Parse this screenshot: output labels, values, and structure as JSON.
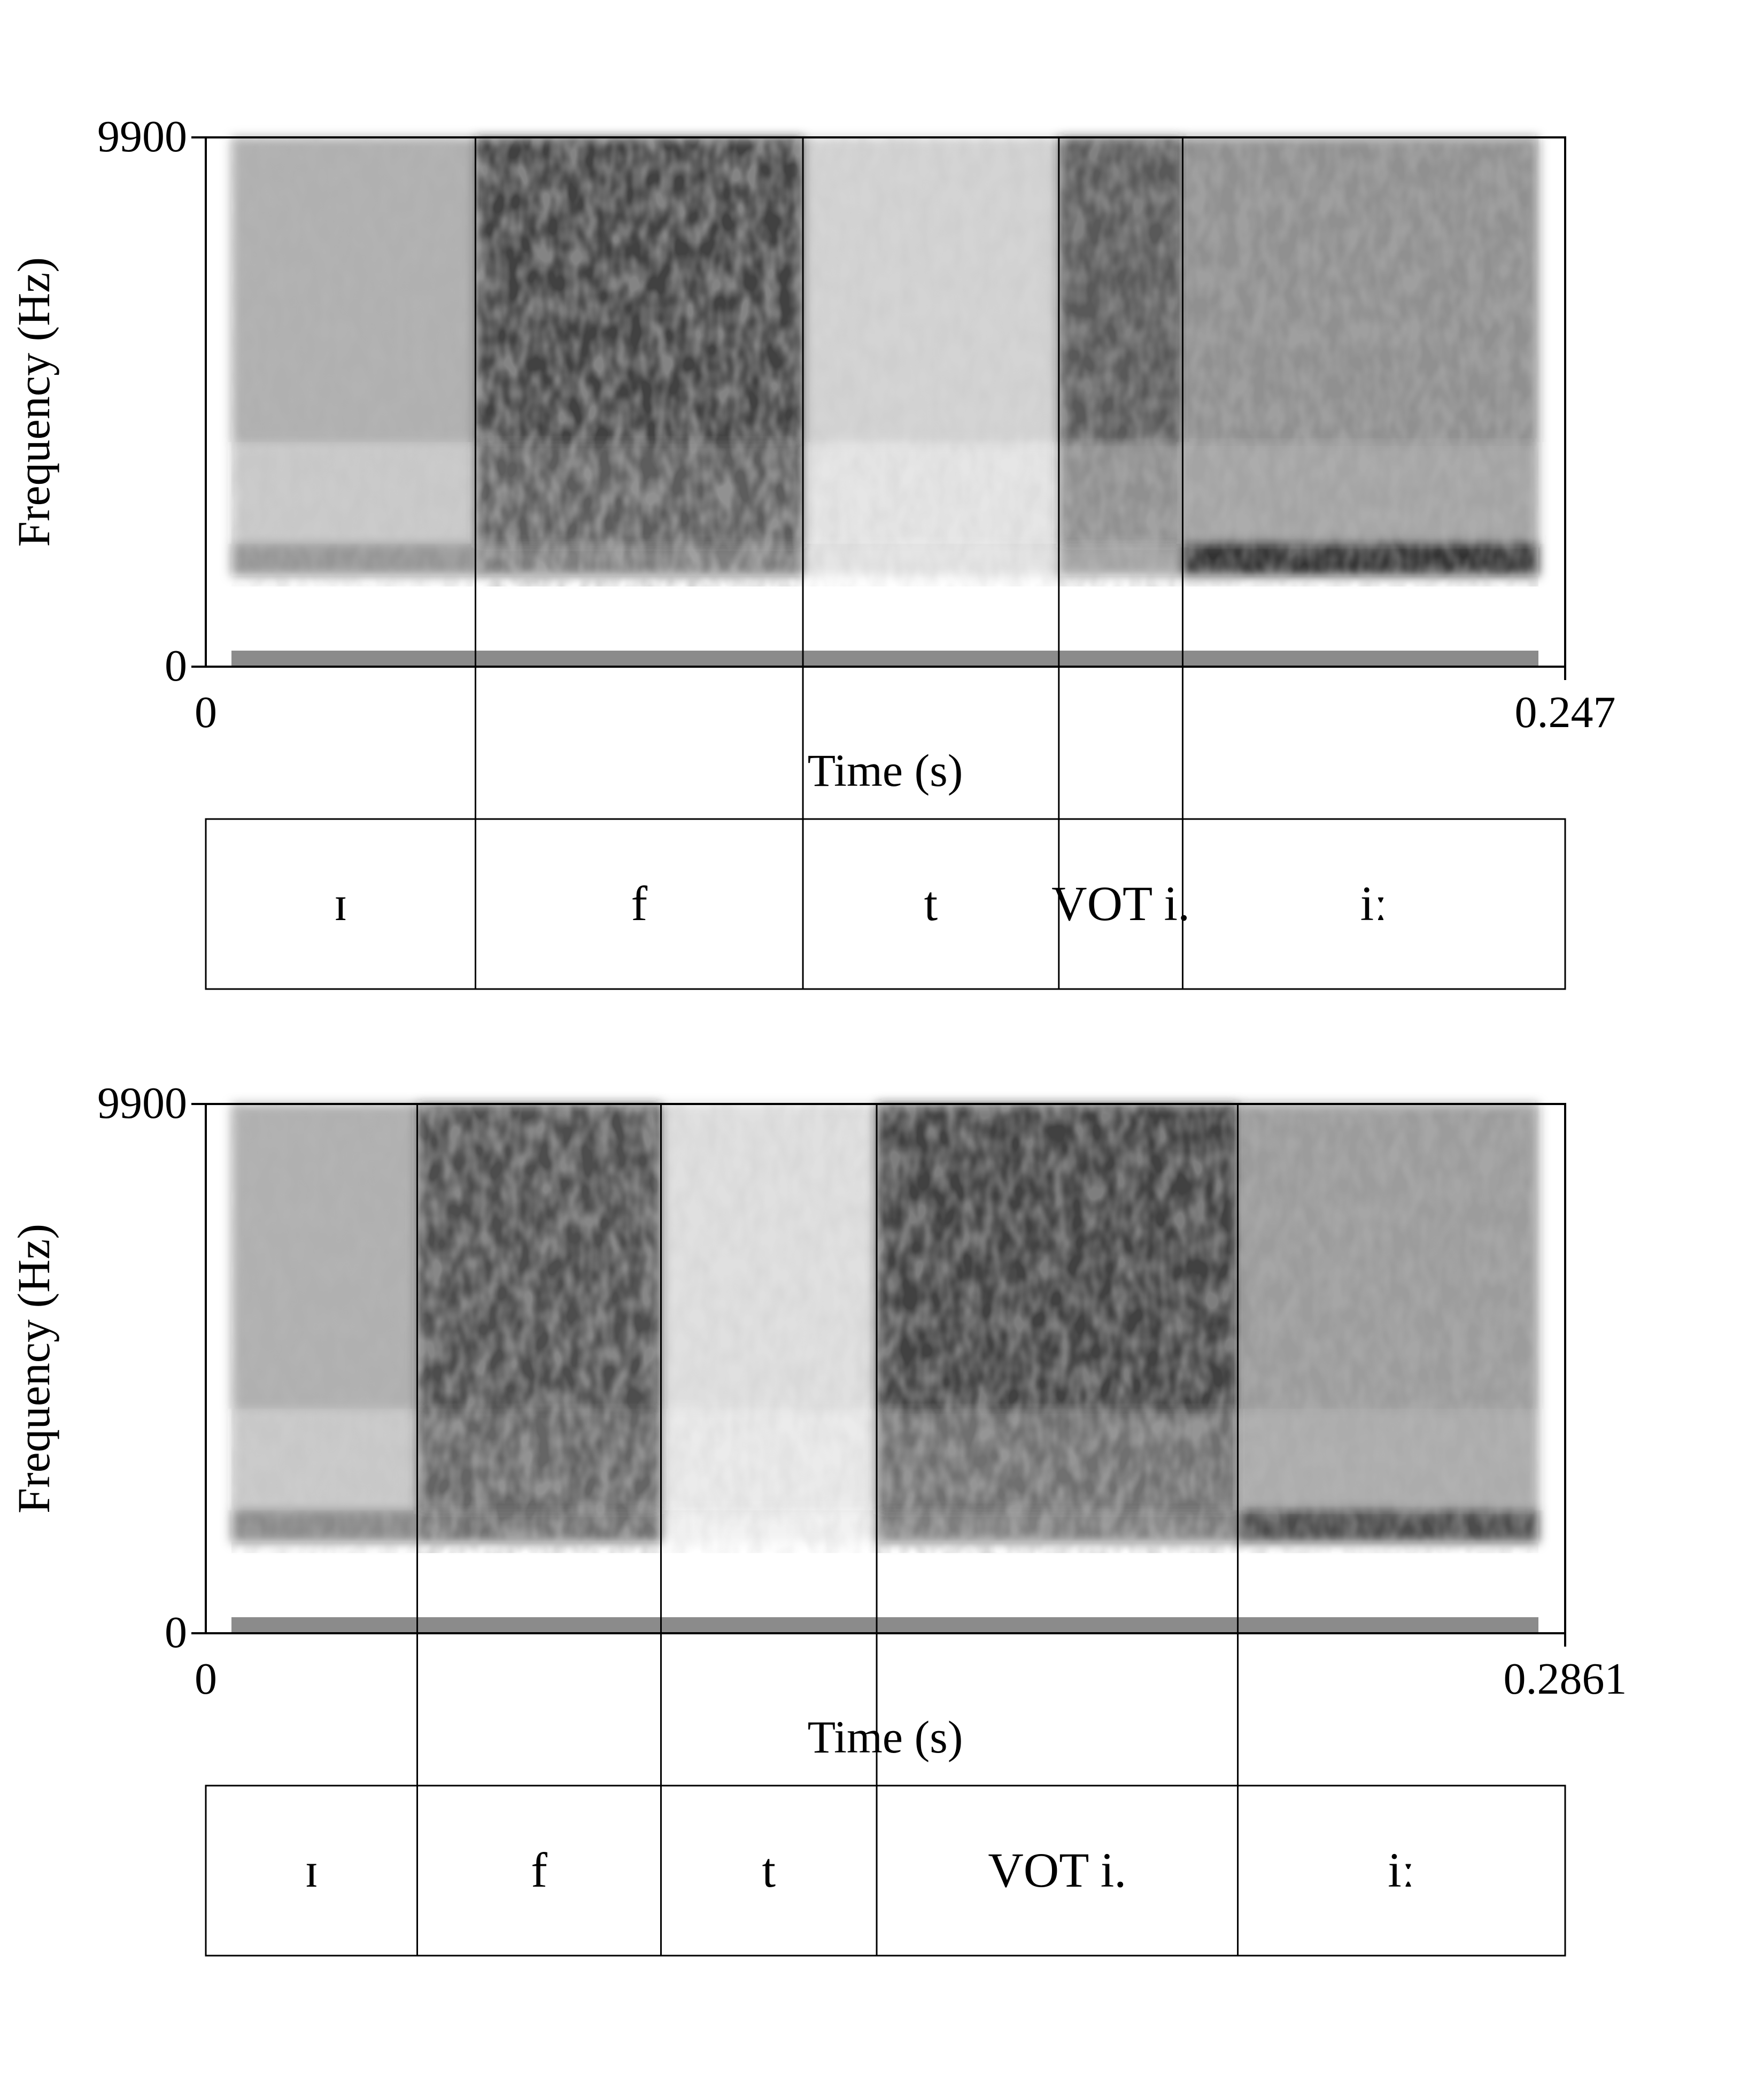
{
  "chart_data": [
    {
      "type": "spectrogram",
      "xlabel": "Time (s)",
      "ylabel": "Frequency (Hz)",
      "xlim": [
        0,
        0.247
      ],
      "ylim": [
        0,
        9900
      ],
      "x_tick_labels": [
        "0",
        "0.247"
      ],
      "y_tick_labels": [
        "0",
        "9900"
      ],
      "boundaries": [
        0.049,
        0.1085,
        0.155,
        0.1775
      ],
      "segments": [
        {
          "label": "ɪ",
          "start": 0,
          "end": 0.049
        },
        {
          "label": "f",
          "start": 0.049,
          "end": 0.1085
        },
        {
          "label": "t",
          "start": 0.1085,
          "end": 0.155
        },
        {
          "label": "VOT i.",
          "start": 0.155,
          "end": 0.1775
        },
        {
          "label": "iː",
          "start": 0.1775,
          "end": 0.247
        }
      ]
    },
    {
      "type": "spectrogram",
      "xlabel": "Time (s)",
      "ylabel": "Frequency (Hz)",
      "xlim": [
        0,
        0.2861
      ],
      "ylim": [
        0,
        9900
      ],
      "x_tick_labels": [
        "0",
        "0.2861"
      ],
      "y_tick_labels": [
        "0",
        "9900"
      ],
      "boundaries": [
        0.0445,
        0.0958,
        0.1412,
        0.2172
      ],
      "segments": [
        {
          "label": "ɪ",
          "start": 0,
          "end": 0.0445
        },
        {
          "label": "f",
          "start": 0.0445,
          "end": 0.0958
        },
        {
          "label": "t",
          "start": 0.0958,
          "end": 0.1412
        },
        {
          "label": "VOT i.",
          "start": 0.1412,
          "end": 0.2172
        },
        {
          "label": "iː",
          "start": 0.2172,
          "end": 0.2861
        }
      ]
    }
  ]
}
